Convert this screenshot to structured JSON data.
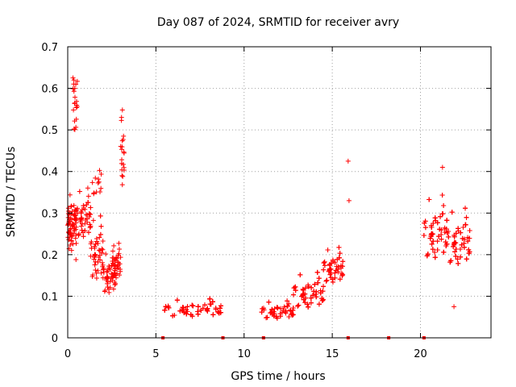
{
  "chart_data": {
    "type": "scatter",
    "title": "Day 087 of 2024, SRMTID for receiver avry",
    "xlabel": "GPS time / hours",
    "ylabel": "SRMTID / TECUs",
    "xlim": [
      0,
      24
    ],
    "ylim": [
      0,
      0.7
    ],
    "x_ticks": [
      0,
      5,
      10,
      15,
      20
    ],
    "x_tick_labels": [
      "0",
      "5",
      "10",
      "15",
      "20"
    ],
    "y_ticks": [
      0,
      0.1,
      0.2,
      0.3,
      0.4,
      0.5,
      0.6,
      0.7
    ],
    "y_tick_labels": [
      "0",
      "0.1",
      "0.2",
      "0.3",
      "0.4",
      "0.5",
      "0.6",
      "0.7"
    ],
    "grid": true,
    "marker": "+",
    "color": "#ff0000",
    "series": [
      {
        "name": "SRMTID",
        "clusters": [
          {
            "t_start": 0.0,
            "t_end": 0.5,
            "center": 0.27,
            "spread": 0.06,
            "count": 70
          },
          {
            "t_start": 0.3,
            "t_end": 0.6,
            "center": 0.55,
            "spread": 0.08,
            "count": 18
          },
          {
            "t_start": 0.5,
            "t_end": 1.3,
            "center": 0.28,
            "spread": 0.07,
            "count": 70
          },
          {
            "t_start": 1.3,
            "t_end": 2.0,
            "center": 0.19,
            "spread": 0.09,
            "count": 60
          },
          {
            "t_start": 1.4,
            "t_end": 1.9,
            "center": 0.37,
            "spread": 0.05,
            "count": 12
          },
          {
            "t_start": 2.0,
            "t_end": 2.7,
            "center": 0.14,
            "spread": 0.06,
            "count": 55
          },
          {
            "t_start": 2.5,
            "t_end": 3.0,
            "center": 0.17,
            "spread": 0.05,
            "count": 35
          },
          {
            "t_start": 3.0,
            "t_end": 3.2,
            "center": 0.42,
            "spread": 0.1,
            "count": 18
          },
          {
            "t_start": 5.5,
            "t_end": 8.7,
            "center": 0.065,
            "spread": 0.025,
            "count": 280
          },
          {
            "t_start": 11.0,
            "t_end": 12.8,
            "center": 0.06,
            "spread": 0.025,
            "count": 110
          },
          {
            "t_start": 12.8,
            "t_end": 14.5,
            "center": 0.1,
            "spread": 0.05,
            "count": 150
          },
          {
            "t_start": 14.5,
            "t_end": 15.6,
            "center": 0.16,
            "spread": 0.05,
            "count": 90
          },
          {
            "t_start": 20.2,
            "t_end": 21.5,
            "center": 0.24,
            "spread": 0.09,
            "count": 140
          },
          {
            "t_start": 21.5,
            "t_end": 22.8,
            "center": 0.22,
            "spread": 0.08,
            "count": 130
          }
        ],
        "outliers": [
          {
            "x": 0.3,
            "y": 0.625
          },
          {
            "x": 0.35,
            "y": 0.62
          },
          {
            "x": 0.4,
            "y": 0.6
          },
          {
            "x": 3.1,
            "y": 0.548
          },
          {
            "x": 3.05,
            "y": 0.53
          },
          {
            "x": 15.9,
            "y": 0.425
          },
          {
            "x": 15.95,
            "y": 0.33
          },
          {
            "x": 21.25,
            "y": 0.41
          },
          {
            "x": 21.9,
            "y": 0.075
          }
        ],
        "zero_markers": [
          5.4,
          8.8,
          11.1,
          15.9,
          18.2,
          20.2
        ]
      }
    ]
  }
}
